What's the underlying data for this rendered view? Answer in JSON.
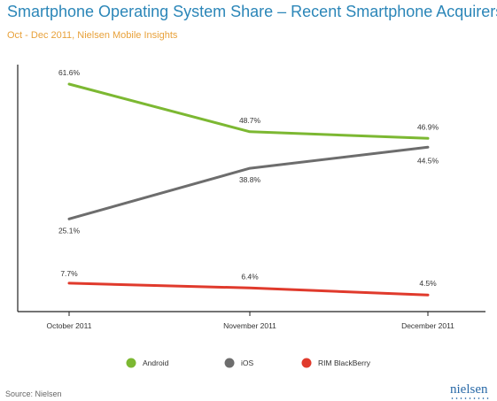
{
  "header": {
    "title": "Smartphone Operating System Share – Recent Smartphone Acquirers",
    "subtitle": "Oct - Dec 2011, Nielsen Mobile Insights"
  },
  "footer": {
    "source": "Source: Nielsen",
    "brand": "nielsen"
  },
  "chart_data": {
    "type": "line",
    "title": "Smartphone Operating System Share – Recent Smartphone Acquirers",
    "subtitle": "Oct - Dec 2011, Nielsen Mobile Insights",
    "categories": [
      "October 2011",
      "November 2011",
      "December 2011"
    ],
    "series": [
      {
        "name": "Android",
        "color": "#7cb832",
        "values": [
          61.6,
          48.7,
          46.9
        ],
        "labels": [
          "61.6%",
          "48.7%",
          "46.9%"
        ]
      },
      {
        "name": "iOS",
        "color": "#6d6d6d",
        "values": [
          25.1,
          38.8,
          44.5
        ],
        "labels": [
          "25.1%",
          "38.8%",
          "44.5%"
        ]
      },
      {
        "name": "RIM BlackBerry",
        "color": "#e03a2c",
        "values": [
          7.7,
          6.4,
          4.5
        ],
        "labels": [
          "7.7%",
          "6.4%",
          "4.5%"
        ]
      }
    ],
    "ylim": [
      0,
      70
    ],
    "grid": false,
    "legend_position": "bottom",
    "xlabel": "",
    "ylabel": ""
  }
}
